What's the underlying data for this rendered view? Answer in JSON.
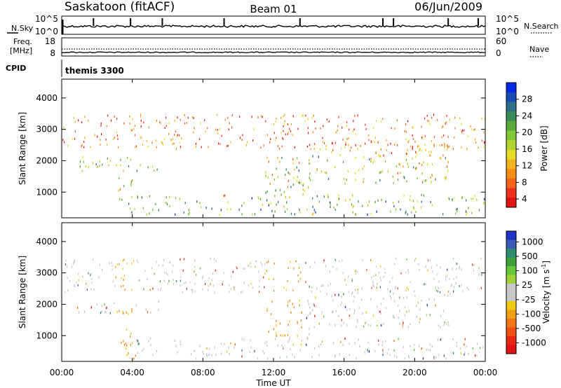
{
  "header": {
    "station": "Saskatoon (fitACF)",
    "beam": "Beam 01",
    "date": "06/Jun/2009"
  },
  "nsky_panel": {
    "left_label": "N.Sky",
    "left_tick_top": "10^5",
    "left_tick_bottom": "10^0",
    "right_tick_top": "10^5",
    "right_tick_bottom": "10^0",
    "right_label": "N.Search"
  },
  "freq_panel": {
    "left_label_1": "Freq.",
    "left_label_2": "[MHz]",
    "left_tick_top": "18",
    "left_tick_bottom": "8",
    "right_tick_top": "60",
    "right_tick_bottom": "0",
    "right_label": "Nave"
  },
  "cpid": {
    "label": "CPID",
    "value": "themis 3300"
  },
  "power_panel": {
    "ylabel": "Slant Range [km]",
    "y_ticks": [
      "4000",
      "3000",
      "2000",
      "1000"
    ],
    "colorbar_label": "Power [dB]",
    "colorbar_ticks": [
      "28",
      "24",
      "20",
      "16",
      "12",
      "8",
      "4"
    ],
    "colors": [
      "#0028e6",
      "#1a4ab4",
      "#2e6e8a",
      "#3c8c5a",
      "#5aaa3c",
      "#82c837",
      "#b4d232",
      "#e6dc28",
      "#f0b41e",
      "#f58c14",
      "#f5641e",
      "#eb321e",
      "#e11414"
    ]
  },
  "velocity_panel": {
    "ylabel": "Slant Range [km]",
    "y_ticks": [
      "4000",
      "3000",
      "2000",
      "1000"
    ],
    "colorbar_label": "Velocity [m s^-1]",
    "colorbar_ticks": [
      "1000",
      "500",
      "100",
      "25",
      "-25",
      "-100",
      "-500",
      "-1000"
    ],
    "colors": [
      "#1e32c8",
      "#3c5ab4",
      "#2e8c6e",
      "#3ca03c",
      "#64c83c",
      "#a0d23c",
      "#c8c8c8",
      "#c8c8c8",
      "#f0c814",
      "#f0a014",
      "#f07814",
      "#f05014",
      "#e62814",
      "#e11414"
    ]
  },
  "x_axis": {
    "label": "Time UT",
    "ticks": [
      "00:00",
      "04:00",
      "08:00",
      "12:00",
      "16:00",
      "20:00",
      "00:00"
    ]
  },
  "chart_data": {
    "type": "heatmap",
    "title": "Saskatoon (fitACF) Beam 01 06/Jun/2009",
    "xlabel": "Time UT",
    "ylabel": "Slant Range [km]",
    "xlim_hours": [
      0,
      24
    ],
    "ylim_km": [
      180,
      4600
    ],
    "grid": false,
    "features": [
      {
        "name": "band-2000",
        "t0": 0.3,
        "t1": 5.6,
        "r0": 1700,
        "r1": 2150
      },
      {
        "name": "descent-0330",
        "t0": 3.2,
        "t1": 4.0,
        "r0": 700,
        "r1": 1500
      },
      {
        "name": "near-range-band",
        "t0": 3.6,
        "t1": 24.0,
        "r0": 300,
        "r1": 950
      },
      {
        "name": "rise-1200-1400",
        "t0": 11.5,
        "t1": 14.0,
        "r0": 900,
        "r1": 2200
      },
      {
        "name": "arc-1400-2200",
        "t0": 14.0,
        "t1": 22.0,
        "r0": 1300,
        "r1": 2700
      }
    ]
  }
}
